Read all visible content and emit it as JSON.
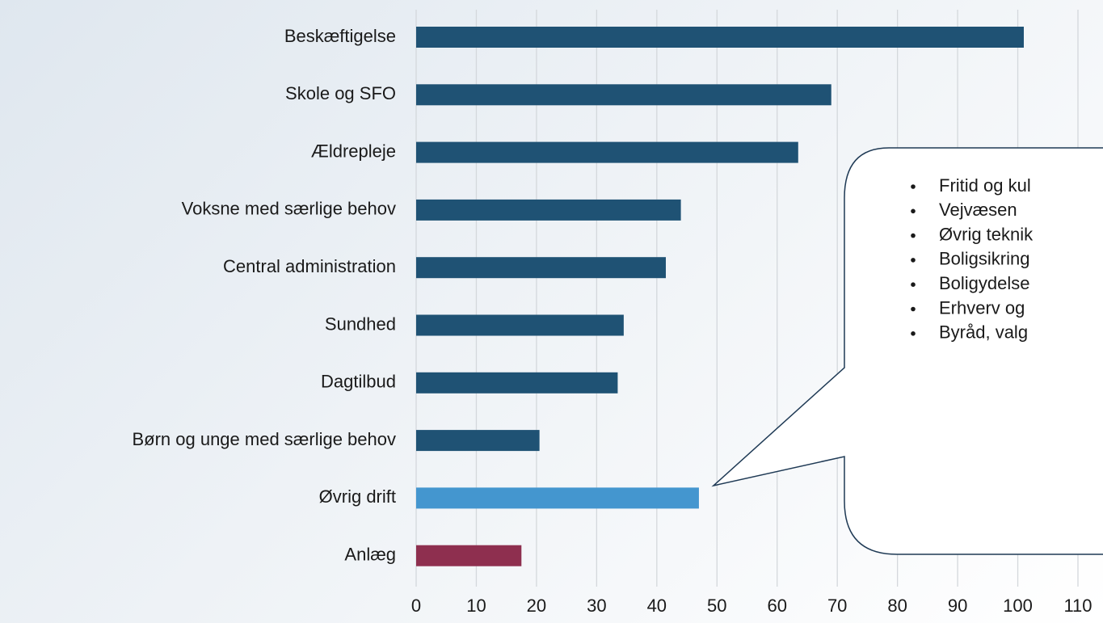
{
  "chart_data": {
    "type": "bar",
    "orientation": "horizontal",
    "categories": [
      "Beskæftigelse",
      "Skole og SFO",
      "Ældrepleje",
      "Voksne med særlige behov",
      "Central administration",
      "Sundhed",
      "Dagtilbud",
      "Børn og unge med særlige behov",
      "Øvrig drift",
      "Anlæg"
    ],
    "values": [
      101,
      69,
      63.5,
      44,
      41.5,
      34.5,
      33.5,
      20.5,
      47,
      17.5
    ],
    "colors": [
      "#1f5274",
      "#1f5274",
      "#1f5274",
      "#1f5274",
      "#1f5274",
      "#1f5274",
      "#1f5274",
      "#1f5274",
      "#4496cf",
      "#8e2f4f"
    ],
    "xlim": [
      0,
      110
    ],
    "xticks": [
      0,
      10,
      20,
      30,
      40,
      50,
      60,
      70,
      80,
      90,
      100,
      110
    ],
    "grid": true
  },
  "callout": {
    "items": [
      "Fritid og kul",
      "Vejvæsen",
      "Øvrig teknik",
      "Boligsikring",
      "Boligydelse",
      "Erhverv og",
      "Byråd, valg"
    ]
  }
}
